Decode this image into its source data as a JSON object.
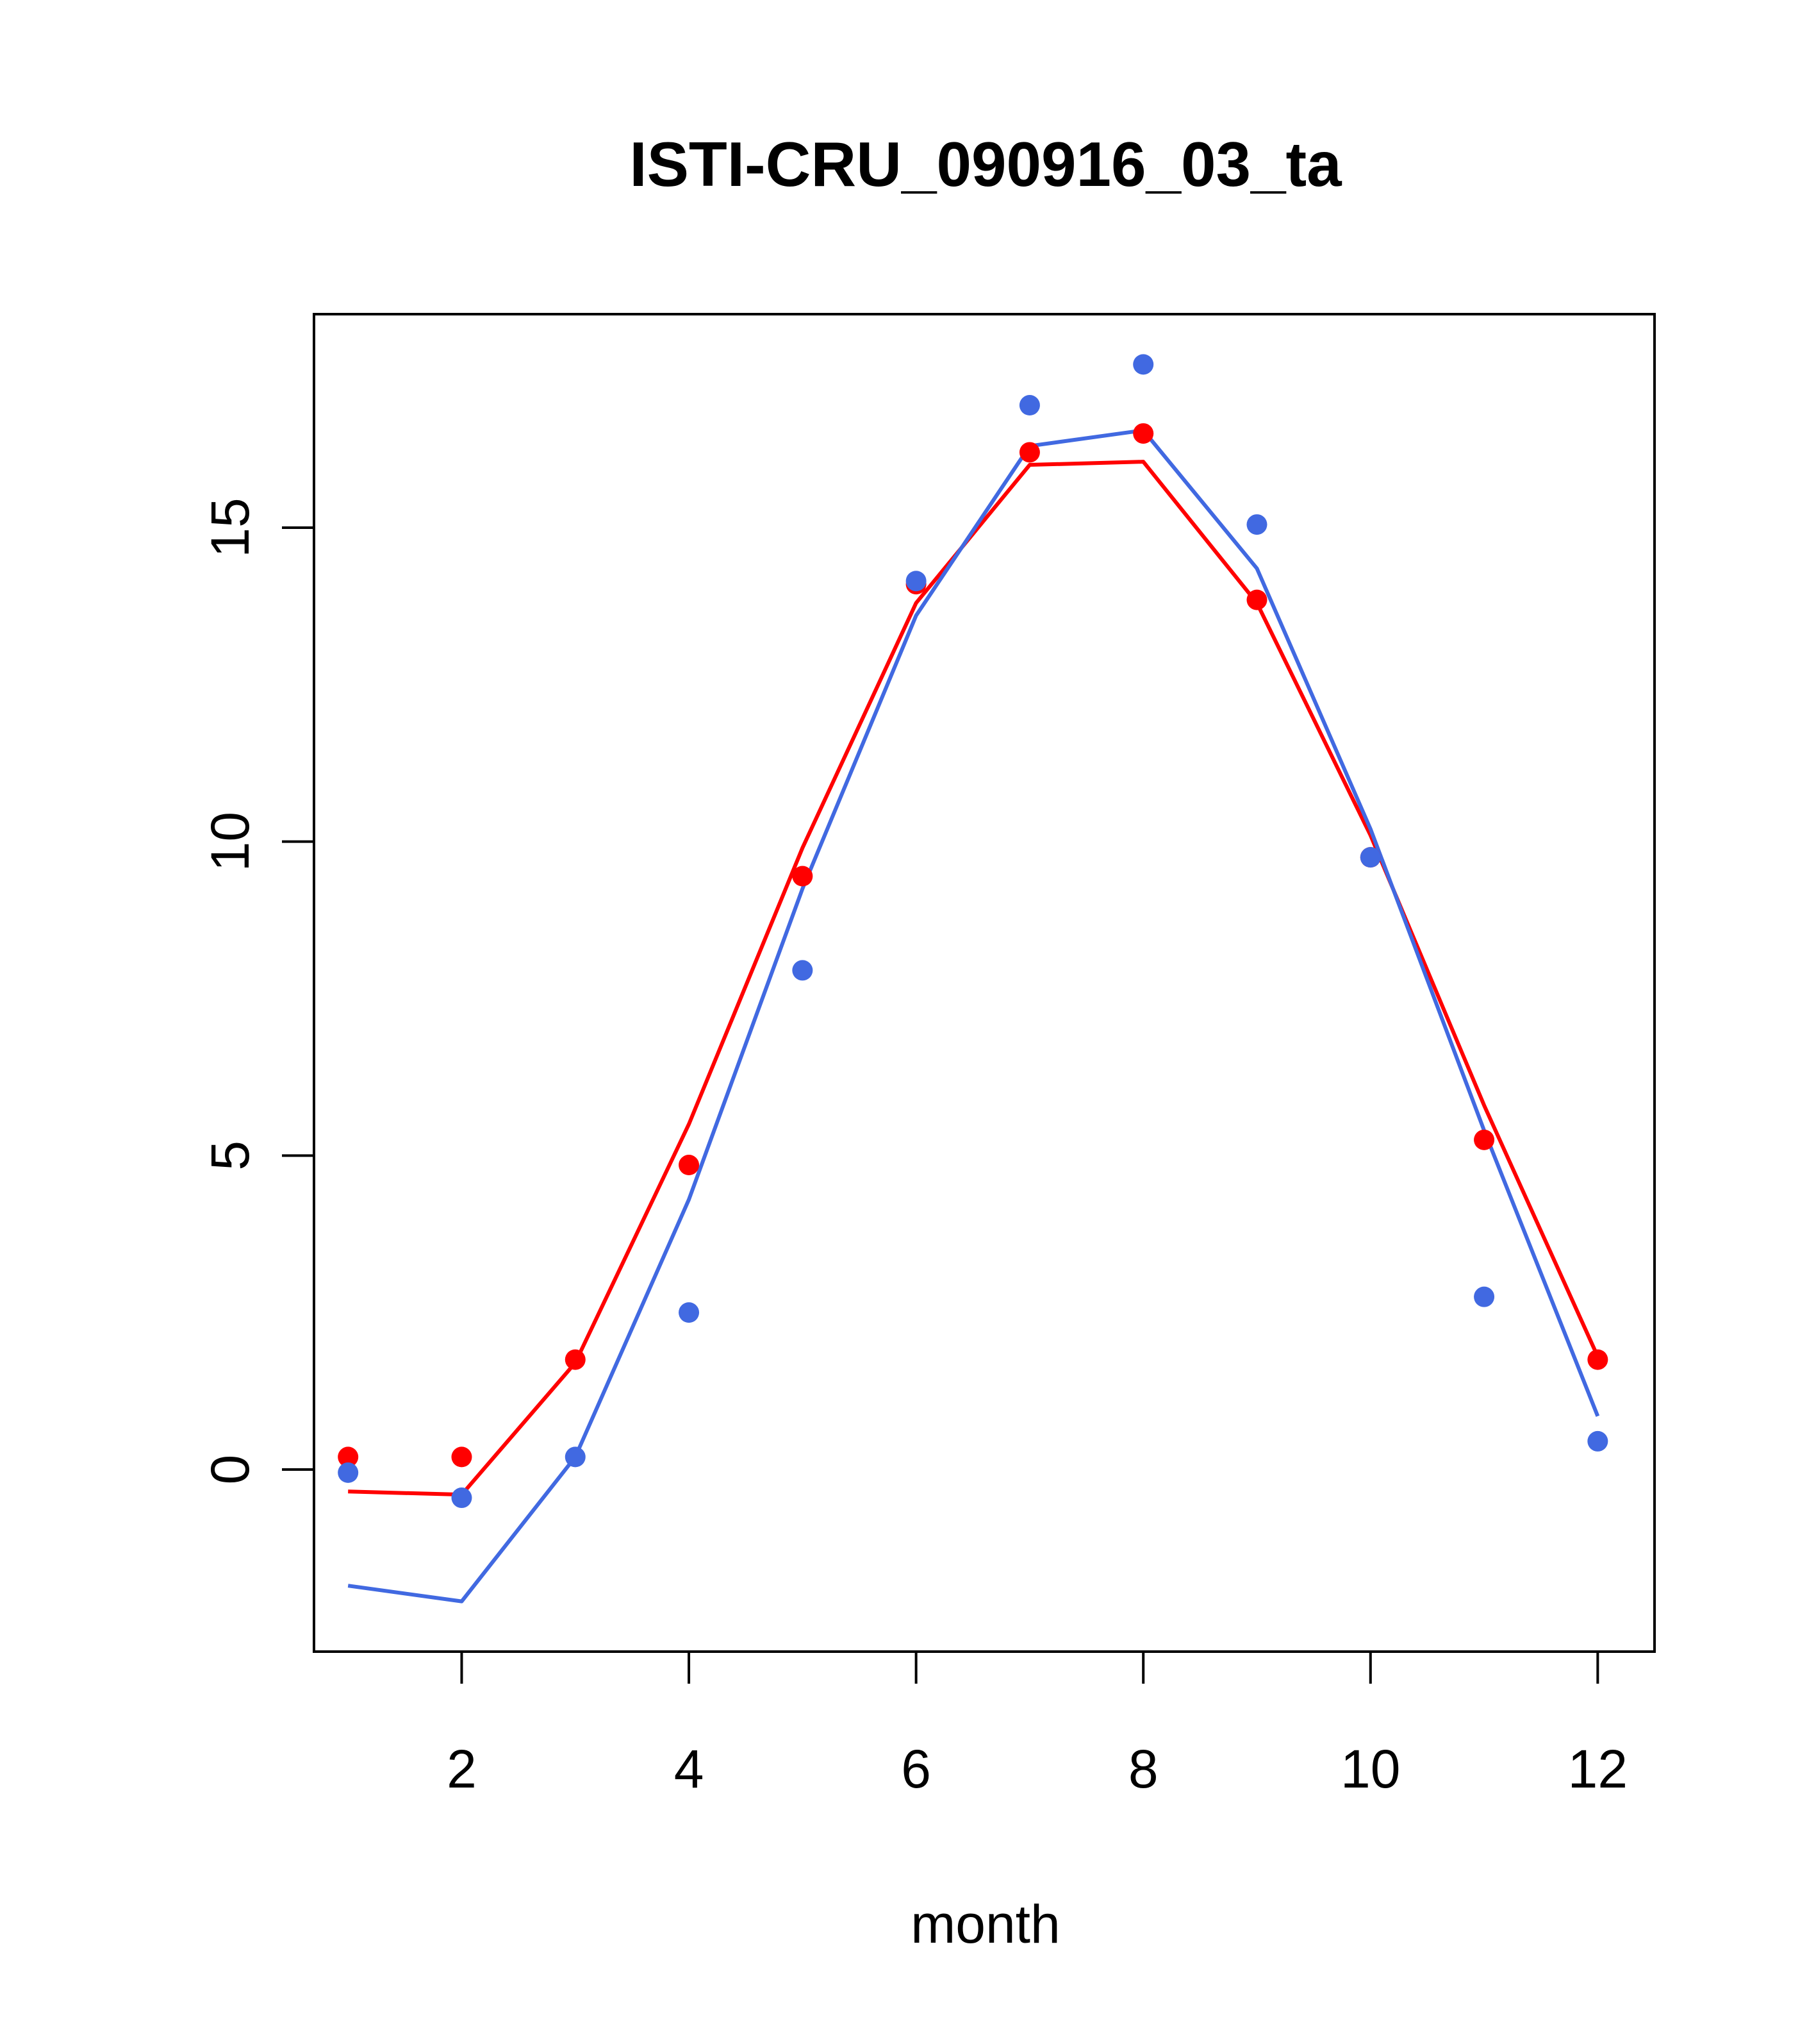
{
  "chart_data": {
    "type": "line",
    "title": "ISTI-CRU_090916_03_ta",
    "xlabel": "month",
    "ylabel": "",
    "xlim": [
      0.7,
      12.5
    ],
    "ylim": [
      -2.9,
      18.4
    ],
    "x_ticks": [
      2,
      4,
      6,
      8,
      10,
      12
    ],
    "y_ticks": [
      0,
      5,
      10,
      15
    ],
    "grid": false,
    "legend": "none",
    "x": [
      1,
      2,
      3,
      4,
      5,
      6,
      7,
      8,
      9,
      10,
      11,
      12
    ],
    "series": [
      {
        "color": "#ff0000",
        "line": [
          -0.35,
          -0.4,
          1.7,
          5.5,
          9.9,
          13.8,
          16.0,
          16.05,
          13.8,
          10.1,
          5.8,
          1.8
        ],
        "points": [
          0.2,
          0.2,
          1.75,
          4.85,
          9.45,
          14.1,
          16.2,
          16.5,
          13.85,
          9.75,
          5.25,
          1.75
        ]
      },
      {
        "color": "#4169e1",
        "line": [
          -1.85,
          -2.1,
          0.2,
          4.3,
          9.25,
          13.6,
          16.3,
          16.55,
          14.35,
          10.2,
          5.4,
          0.85
        ],
        "points": [
          -0.05,
          -0.45,
          0.2,
          2.5,
          7.95,
          14.15,
          16.95,
          17.6,
          15.05,
          9.75,
          2.75,
          0.45
        ]
      }
    ]
  }
}
